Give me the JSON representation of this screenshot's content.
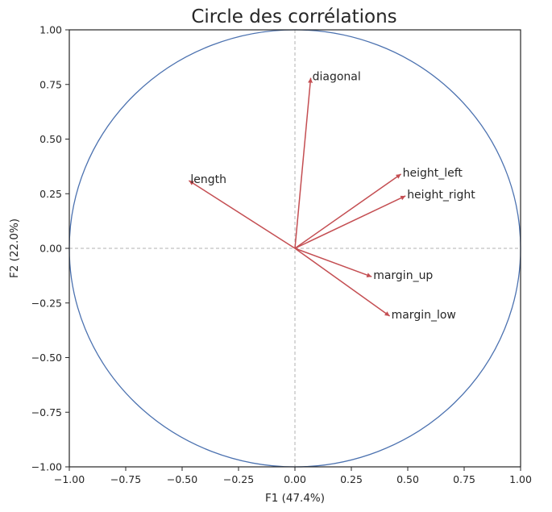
{
  "chart_data": {
    "type": "scatter",
    "title": "Circle des corrélations",
    "xlabel": "F1 (47.4%)",
    "ylabel": "F2 (22.0%)",
    "xlim": [
      -1.0,
      1.0
    ],
    "ylim": [
      -1.0,
      1.0
    ],
    "x_ticks": [
      "−1.00",
      "−0.75",
      "−0.50",
      "−0.25",
      "0.00",
      "0.25",
      "0.50",
      "0.75",
      "1.00"
    ],
    "y_ticks": [
      "1.00",
      "0.75",
      "0.50",
      "0.25",
      "0.00",
      "−0.25",
      "−0.50",
      "−0.75",
      "−1.00"
    ],
    "unit_circle": true,
    "grid": false,
    "reference_lines": "dashed lines at x=0 and y=0",
    "colors": {
      "arrow": "#c44e52",
      "circle": "#4c72b0",
      "reference": "#b0b0b0",
      "frame": "#262626"
    },
    "vectors": [
      {
        "name": "diagonal",
        "x": 0.07,
        "y": 0.78
      },
      {
        "name": "length",
        "x": -0.47,
        "y": 0.31
      },
      {
        "name": "height_left",
        "x": 0.47,
        "y": 0.34
      },
      {
        "name": "height_right",
        "x": 0.49,
        "y": 0.24
      },
      {
        "name": "margin_up",
        "x": 0.34,
        "y": -0.13
      },
      {
        "name": "margin_low",
        "x": 0.42,
        "y": -0.31
      }
    ]
  }
}
